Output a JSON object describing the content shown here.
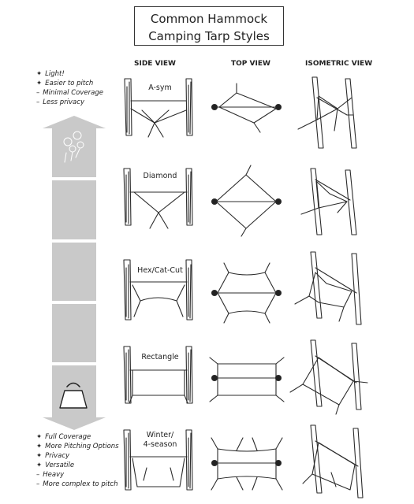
{
  "title": {
    "line1": "Common Hammock",
    "line2": "Camping Tarp Styles"
  },
  "columns": {
    "side": "SIDE VIEW",
    "top": "TOP VIEW",
    "iso": "ISOMETRIC VIEW"
  },
  "legend_top": [
    {
      "bullet": "✦",
      "text": "Light!"
    },
    {
      "bullet": "✦",
      "text": "Easier to pitch"
    },
    {
      "bullet": "–",
      "text": "Minimal Coverage"
    },
    {
      "bullet": "–",
      "text": "Less privacy"
    }
  ],
  "legend_bottom": [
    {
      "bullet": "✦",
      "text": "Full Coverage"
    },
    {
      "bullet": "✦",
      "text": "More Pitching Options"
    },
    {
      "bullet": "✦",
      "text": "Privacy"
    },
    {
      "bullet": "✦",
      "text": "Versatile"
    },
    {
      "bullet": "–",
      "text": "Heavy"
    },
    {
      "bullet": "–",
      "text": "More complex to pitch"
    }
  ],
  "rows": [
    {
      "label1": "A-sym",
      "label2": ""
    },
    {
      "label1": "Diamond",
      "label2": ""
    },
    {
      "label1": "Hex/Cat-Cut",
      "label2": ""
    },
    {
      "label1": "Rectangle",
      "label2": ""
    },
    {
      "label1": "Winter/",
      "label2": "4-season"
    }
  ],
  "colors": {
    "ink": "#2b2b2b",
    "arrow": "#c9c9c9",
    "arrow_dark": "#b3b3b3"
  },
  "icons": {
    "arrow_top": "dandelion-icon",
    "arrow_bottom": "weight-icon"
  }
}
